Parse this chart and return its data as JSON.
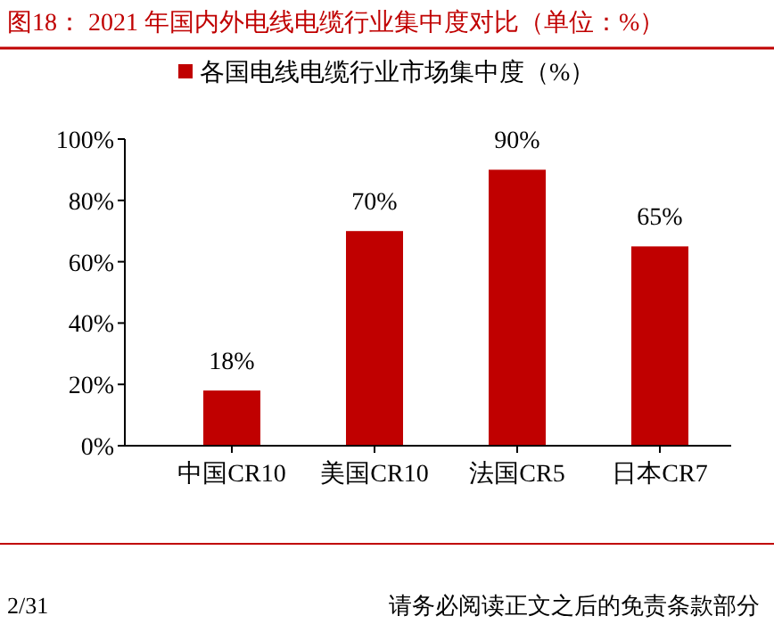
{
  "chart_data": {
    "type": "bar",
    "title": "图18：  2021 年国内外电线电缆行业集中度对比（单位：%）",
    "categories": [
      "中国CR10",
      "美国CR10",
      "法国CR5",
      "日本CR7"
    ],
    "series": [
      {
        "name": "各国电线电缆行业市场集中度（%）",
        "color": "#c00000",
        "values": [
          18,
          70,
          90,
          65
        ],
        "value_labels": [
          "18%",
          "70%",
          "90%",
          "65%"
        ]
      }
    ],
    "ylim": [
      0,
      100
    ],
    "yticks": [
      {
        "value": 0,
        "label": "0%"
      },
      {
        "value": 20,
        "label": "20%"
      },
      {
        "value": 40,
        "label": "40%"
      },
      {
        "value": 60,
        "label": "60%"
      },
      {
        "value": 80,
        "label": "80%"
      },
      {
        "value": 100,
        "label": "100%"
      }
    ],
    "grid": false,
    "legend": "top",
    "annotations": [
      "2/31",
      "请务必阅读正文之后的免责条款部分"
    ]
  }
}
